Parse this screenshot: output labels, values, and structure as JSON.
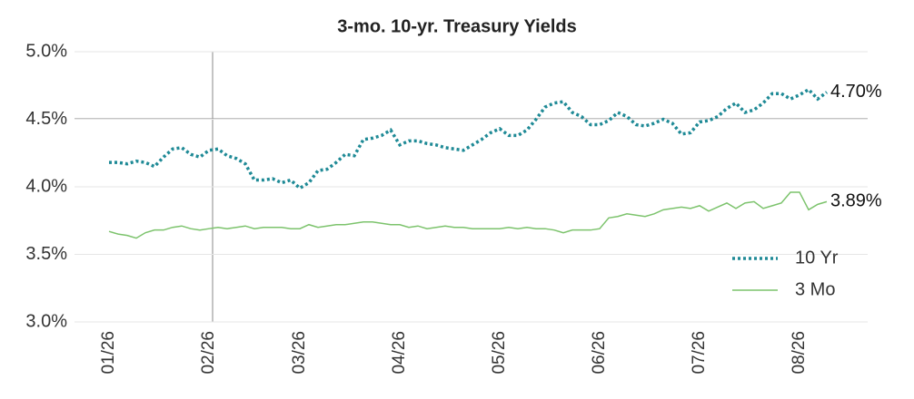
{
  "chart_data": {
    "type": "line",
    "title": "3-mo. 10-yr. Treasury Yields",
    "categories": [
      "01/26",
      null,
      null,
      null,
      null,
      null,
      null,
      null,
      null,
      null,
      null,
      "02/26",
      null,
      null,
      null,
      null,
      null,
      null,
      null,
      null,
      null,
      "03/26",
      null,
      null,
      null,
      null,
      null,
      null,
      null,
      null,
      null,
      null,
      "04/26",
      null,
      null,
      null,
      null,
      null,
      null,
      null,
      null,
      null,
      null,
      "05/26",
      null,
      null,
      null,
      null,
      null,
      null,
      null,
      null,
      null,
      null,
      "06/26",
      null,
      null,
      null,
      null,
      null,
      null,
      null,
      null,
      null,
      null,
      "07/26",
      null,
      null,
      null,
      null,
      null,
      null,
      null,
      null,
      null,
      null,
      "08/26",
      null,
      null,
      null
    ],
    "series": [
      {
        "name": "10 Yr",
        "color": "#1f8a96",
        "dash": true,
        "last_label": "4.70%",
        "values": [
          4.18,
          4.18,
          4.17,
          4.19,
          4.18,
          4.15,
          4.22,
          4.28,
          4.29,
          4.24,
          4.22,
          4.27,
          4.28,
          4.23,
          4.21,
          4.17,
          4.05,
          4.05,
          4.06,
          4.03,
          4.05,
          3.99,
          4.03,
          4.12,
          4.13,
          4.18,
          4.24,
          4.23,
          4.35,
          4.36,
          4.38,
          4.42,
          4.31,
          4.34,
          4.34,
          4.32,
          4.31,
          4.29,
          4.28,
          4.27,
          4.31,
          4.35,
          4.4,
          4.43,
          4.38,
          4.38,
          4.42,
          4.5,
          4.59,
          4.62,
          4.63,
          4.55,
          4.52,
          4.46,
          4.46,
          4.49,
          4.55,
          4.52,
          4.46,
          4.45,
          4.47,
          4.5,
          4.47,
          4.39,
          4.4,
          4.48,
          4.49,
          4.52,
          4.58,
          4.62,
          4.55,
          4.57,
          4.62,
          4.69,
          4.69,
          4.65,
          4.68,
          4.72,
          4.65,
          4.7
        ]
      },
      {
        "name": "3 Mo",
        "color": "#7cc36c",
        "dash": false,
        "last_label": "3.89%",
        "values": [
          3.67,
          3.65,
          3.64,
          3.62,
          3.66,
          3.68,
          3.68,
          3.7,
          3.71,
          3.69,
          3.68,
          3.69,
          3.7,
          3.69,
          3.7,
          3.71,
          3.69,
          3.7,
          3.7,
          3.7,
          3.69,
          3.69,
          3.72,
          3.7,
          3.71,
          3.72,
          3.72,
          3.73,
          3.74,
          3.74,
          3.73,
          3.72,
          3.72,
          3.7,
          3.71,
          3.69,
          3.7,
          3.71,
          3.7,
          3.7,
          3.69,
          3.69,
          3.69,
          3.69,
          3.7,
          3.69,
          3.7,
          3.69,
          3.69,
          3.68,
          3.66,
          3.68,
          3.68,
          3.68,
          3.69,
          3.77,
          3.78,
          3.8,
          3.79,
          3.78,
          3.8,
          3.83,
          3.84,
          3.85,
          3.84,
          3.86,
          3.82,
          3.85,
          3.88,
          3.84,
          3.88,
          3.89,
          3.84,
          3.86,
          3.88,
          3.96,
          3.96,
          3.83,
          3.87,
          3.89
        ]
      }
    ],
    "ylim": [
      3,
      5
    ],
    "yticks": [
      {
        "value": 3,
        "label": "3.0%"
      },
      {
        "value": 3.5,
        "label": "3.5%"
      },
      {
        "value": 4,
        "label": "4.0%"
      },
      {
        "value": 4.5,
        "label": "4.5%"
      },
      {
        "value": 5,
        "label": "5.0%"
      }
    ],
    "grid": true,
    "legend": "right"
  }
}
